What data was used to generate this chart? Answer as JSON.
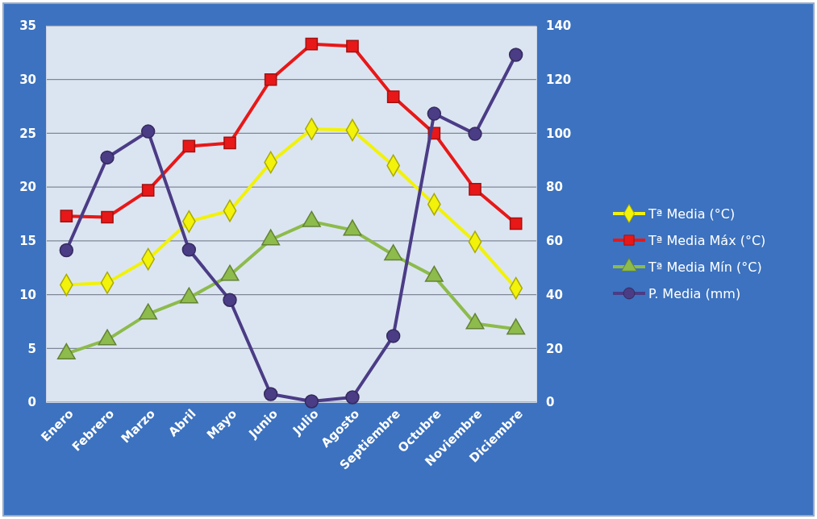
{
  "chart_data": {
    "type": "line",
    "categories": [
      "Enero",
      "Febrero",
      "Marzo",
      "Abril",
      "Mayo",
      "Junio",
      "Julio",
      "Agosto",
      "Septiembre",
      "Octubre",
      "Noviembre",
      "Diciembre"
    ],
    "series": [
      {
        "name": "Tª Media (°C)",
        "color": "#f2f20a",
        "marker": "diamond",
        "values": [
          10.9,
          11.1,
          13.3,
          16.8,
          17.8,
          22.3,
          25.4,
          25.3,
          22.0,
          18.4,
          14.9,
          10.6
        ]
      },
      {
        "name": "Tª Media Máx (°C)",
        "color": "#e81818",
        "marker": "square",
        "values": [
          17.3,
          17.2,
          19.7,
          23.8,
          24.1,
          30.0,
          33.3,
          33.1,
          28.4,
          25.0,
          19.8,
          16.6
        ]
      },
      {
        "name": "Tª Media Mín (°C)",
        "color": "#8dbb4c",
        "marker": "triangle",
        "values": [
          4.5,
          5.8,
          8.2,
          9.7,
          11.8,
          15.1,
          16.8,
          16.0,
          13.7,
          11.7,
          7.3,
          6.8
        ]
      },
      {
        "name": "P. Media (mm)",
        "color": "#4b3c86",
        "marker": "circle",
        "axis": "y2",
        "values": [
          56.5,
          91,
          100.7,
          56.7,
          38,
          3,
          0.3,
          1.8,
          24.6,
          107.3,
          99.8,
          129.2
        ]
      }
    ],
    "ylim": [
      0,
      35
    ],
    "yticks": [
      0,
      5,
      10,
      15,
      20,
      25,
      30,
      35
    ],
    "y2lim": [
      0,
      140
    ],
    "y2ticks": [
      0,
      20,
      40,
      60,
      80,
      100,
      120,
      140
    ],
    "grid": "y",
    "legend": "right",
    "line_style": "solid"
  }
}
